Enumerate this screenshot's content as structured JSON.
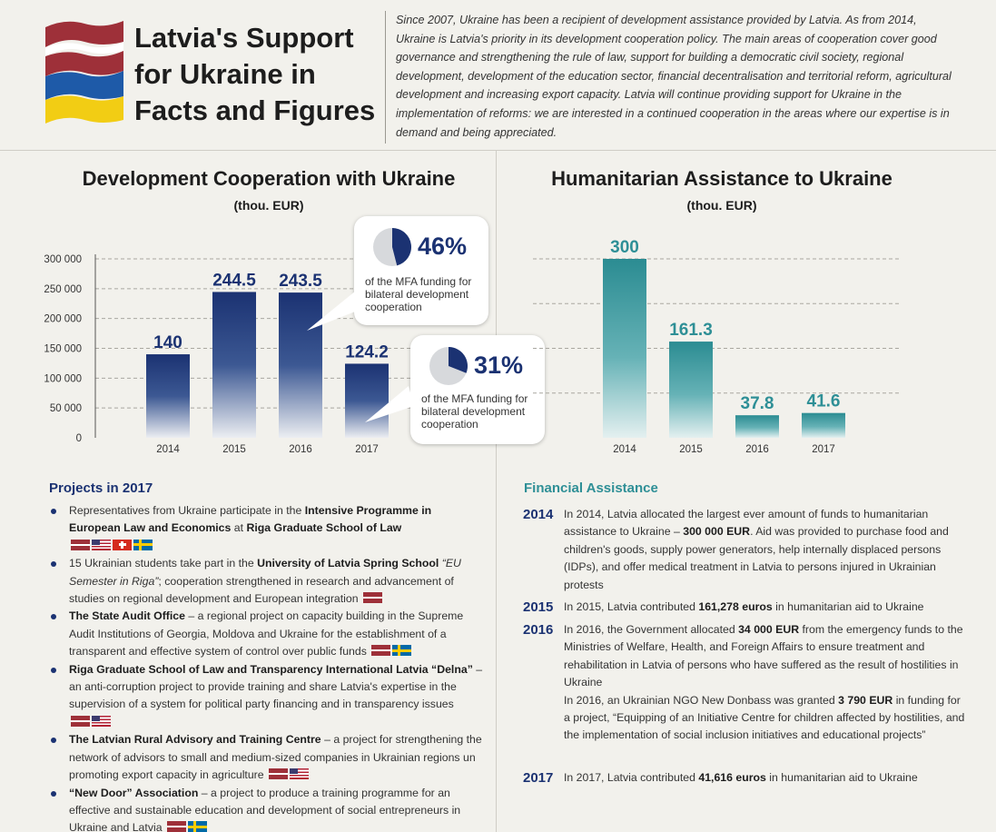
{
  "header": {
    "title_lines": [
      "Latvia's Support",
      "for Ukraine in",
      "Facts and Figures"
    ],
    "intro": "Since 2007, Ukraine has been a recipient of development assistance provided by Latvia. As from 2014, Ukraine is Latvia's priority in its development cooperation policy. The main areas of cooperation cover good governance and strengthening the rule of law, support for building a democratic civil society, regional development, development of the education sector, financial decentralisation and territorial reform, agricultural development and increasing export capacity. Latvia will continue providing support for Ukraine in the implementation of reforms: we are interested in a continued cooperation in the areas where our expertise is in demand and being appreciated."
  },
  "colors": {
    "navy": "#1b3272",
    "teal": "#2e8f96",
    "latvia_red": "#9e3039",
    "ukraine_blue": "#0057b7",
    "ukraine_yellow": "#ffd700"
  },
  "chart_data": [
    {
      "type": "bar",
      "title": "Development Cooperation with Ukraine",
      "subtitle": "(thou. EUR)",
      "categories": [
        "2014",
        "2015",
        "2016",
        "2017"
      ],
      "values": [
        140,
        244.5,
        243.5,
        124.2
      ],
      "data_labels": [
        "140",
        "244.5",
        "243.5",
        "124.2"
      ],
      "y_ticks": [
        0,
        50000,
        100000,
        150000,
        200000,
        250000,
        300000
      ],
      "y_tick_labels": [
        "0",
        "50 000",
        "100 000",
        "150 000",
        "200 000",
        "250 000",
        "300 000"
      ],
      "ylim": [
        0,
        300000
      ],
      "value_scale": 1000,
      "grid": true,
      "color": "#1b3272",
      "annotations": [
        {
          "percent": "46%",
          "fraction": 0.46,
          "text": "of the MFA funding for bilateral development cooperation",
          "category": "2016"
        },
        {
          "percent": "31%",
          "fraction": 0.31,
          "text": "of the MFA funding for bilateral development cooperation",
          "category": "2017"
        }
      ]
    },
    {
      "type": "bar",
      "title": "Humanitarian Assistance to Ukraine",
      "subtitle": "(thou. EUR)",
      "categories": [
        "2014",
        "2015",
        "2016",
        "2017"
      ],
      "values": [
        300,
        161.3,
        37.8,
        41.6
      ],
      "data_labels": [
        "300",
        "161.3",
        "37.8",
        "41.6"
      ],
      "ylim": [
        0,
        300
      ],
      "grid": true,
      "color": "#2e8f96"
    }
  ],
  "projects": {
    "heading": "Projects in 2017",
    "items": [
      {
        "segments": [
          {
            "t": "Representatives from Ukraine participate in the "
          },
          {
            "t": "Intensive Programme in European Law and Economics",
            "b": true
          },
          {
            "t": " at "
          },
          {
            "t": "Riga Graduate School of Law",
            "b": true
          }
        ],
        "flags": [
          "lv",
          "us",
          "ch",
          "se"
        ]
      },
      {
        "segments": [
          {
            "t": "15 Ukrainian students take part in the "
          },
          {
            "t": "University of Latvia Spring School",
            "b": true
          },
          {
            "t": " "
          },
          {
            "t": "“EU Semester in Riga”",
            "i": true
          },
          {
            "t": "; cooperation strengthened in research and advancement of studies on regional development and European integration"
          }
        ],
        "flags": [
          "lv"
        ]
      },
      {
        "segments": [
          {
            "t": "The State Audit Office",
            "b": true
          },
          {
            "t": " – a regional project on capacity building in the Supreme Audit Institutions of Georgia, Moldova and Ukraine for the establishment of a transparent and effective system of control over public funds"
          }
        ],
        "flags": [
          "lv",
          "se"
        ]
      },
      {
        "segments": [
          {
            "t": "Riga Graduate School of Law and Transparency International Latvia “Delna”",
            "b": true
          },
          {
            "t": " – an anti-corruption project to provide training and share Latvia's expertise in the supervision of a system for political party financing and in transparency issues"
          }
        ],
        "flags": [
          "lv",
          "us"
        ]
      },
      {
        "segments": [
          {
            "t": "The Latvian Rural Advisory and Training Centre",
            "b": true
          },
          {
            "t": " – a project for strengthening the network of advisors to small and medium-sized companies in Ukrainian regions un promoting export capacity in agriculture"
          }
        ],
        "flags": [
          "lv",
          "us"
        ]
      },
      {
        "segments": [
          {
            "t": "“New Door” Association",
            "b": true
          },
          {
            "t": " – a project to produce a training programme for an effective and sustainable education and development of social entrepreneurs in Ukraine and Latvia"
          }
        ],
        "flags": [
          "lv",
          "se"
        ]
      }
    ]
  },
  "financial": {
    "heading": "Financial Assistance",
    "entries": [
      {
        "year": "2014",
        "segments": [
          {
            "t": "In 2014, Latvia allocated the largest ever amount of funds to humanitarian assistance to Ukraine – "
          },
          {
            "t": "300 000 EUR",
            "b": true
          },
          {
            "t": ". Aid was provided to purchase food and children's goods, supply power generators, help internally displaced persons (IDPs), and offer medical treatment in Latvia to persons injured in Ukrainian protests"
          }
        ]
      },
      {
        "year": "2015",
        "segments": [
          {
            "t": "In 2015, Latvia contributed "
          },
          {
            "t": "161,278 euros",
            "b": true
          },
          {
            "t": " in humanitarian aid to Ukraine"
          }
        ]
      },
      {
        "year": "2016",
        "segments": [
          {
            "t": "In 2016, the Government allocated "
          },
          {
            "t": "34 000 EUR",
            "b": true
          },
          {
            "t": " from the emergency funds to the Ministries of Welfare, Health, and Foreign Affairs to ensure treatment and rehabilitation in Latvia of persons who have suffered as the result of hostilities in Ukraine"
          },
          {
            "br": true
          },
          {
            "t": "In 2016, an Ukrainian NGO New Donbass was granted "
          },
          {
            "t": "3 790 EUR",
            "b": true
          },
          {
            "t": " in funding for a project, “Equipping of an Initiative Centre for children affected by hostilities, and the implementation of social inclusion initiatives and educational projects”"
          }
        ]
      },
      {
        "year": "2017",
        "segments": [
          {
            "t": "In 2017, Latvia contributed "
          },
          {
            "t": "41,616 euros",
            "b": true
          },
          {
            "t": " in humanitarian aid to Ukraine"
          }
        ]
      }
    ]
  }
}
